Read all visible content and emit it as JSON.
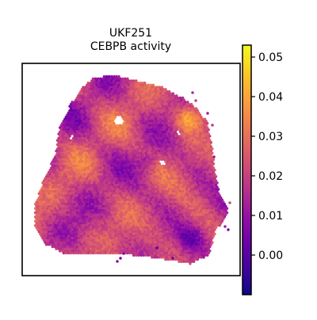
{
  "chart_data": {
    "type": "heatmap",
    "subtype": "spatial-spot-map",
    "title_lines": [
      "UKF251",
      "CEBPB activity"
    ],
    "xlabel": "",
    "ylabel": "",
    "axes_ticks_visible": false,
    "colormap": "plasma",
    "colormap_stops": [
      "#0d0887",
      "#41049d",
      "#6a00a8",
      "#8f0da4",
      "#b12a90",
      "#cc4778",
      "#e16462",
      "#f2844b",
      "#fca636",
      "#fcce25",
      "#f0f921"
    ],
    "colorbar": {
      "position": "right",
      "vmin": -0.01,
      "vmax": 0.053,
      "ticks": [
        0.0,
        0.01,
        0.02,
        0.03,
        0.04,
        0.05
      ],
      "tick_labels": [
        "0.00",
        "0.01",
        "0.02",
        "0.03",
        "0.04",
        "0.05"
      ]
    },
    "typical_value_range": [
      0.005,
      0.035
    ],
    "hot_spot_region": "upper-right edge",
    "grid": false,
    "legend": "none"
  }
}
